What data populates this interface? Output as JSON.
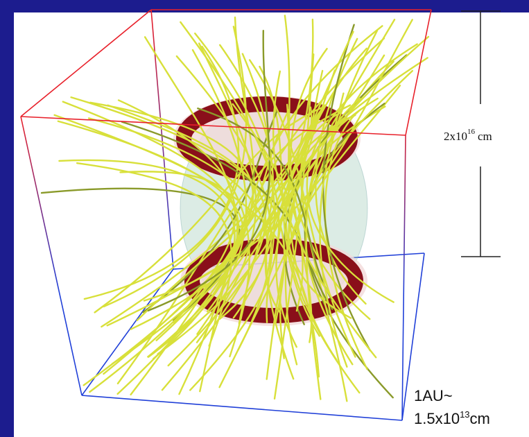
{
  "scale_bar": {
    "mantissa": "2x10",
    "exponent": "16",
    "unit": "cm"
  },
  "note": {
    "line1": "1AU~",
    "mantissa": "1.5x10",
    "exponent": "13",
    "unit": "cm"
  }
}
